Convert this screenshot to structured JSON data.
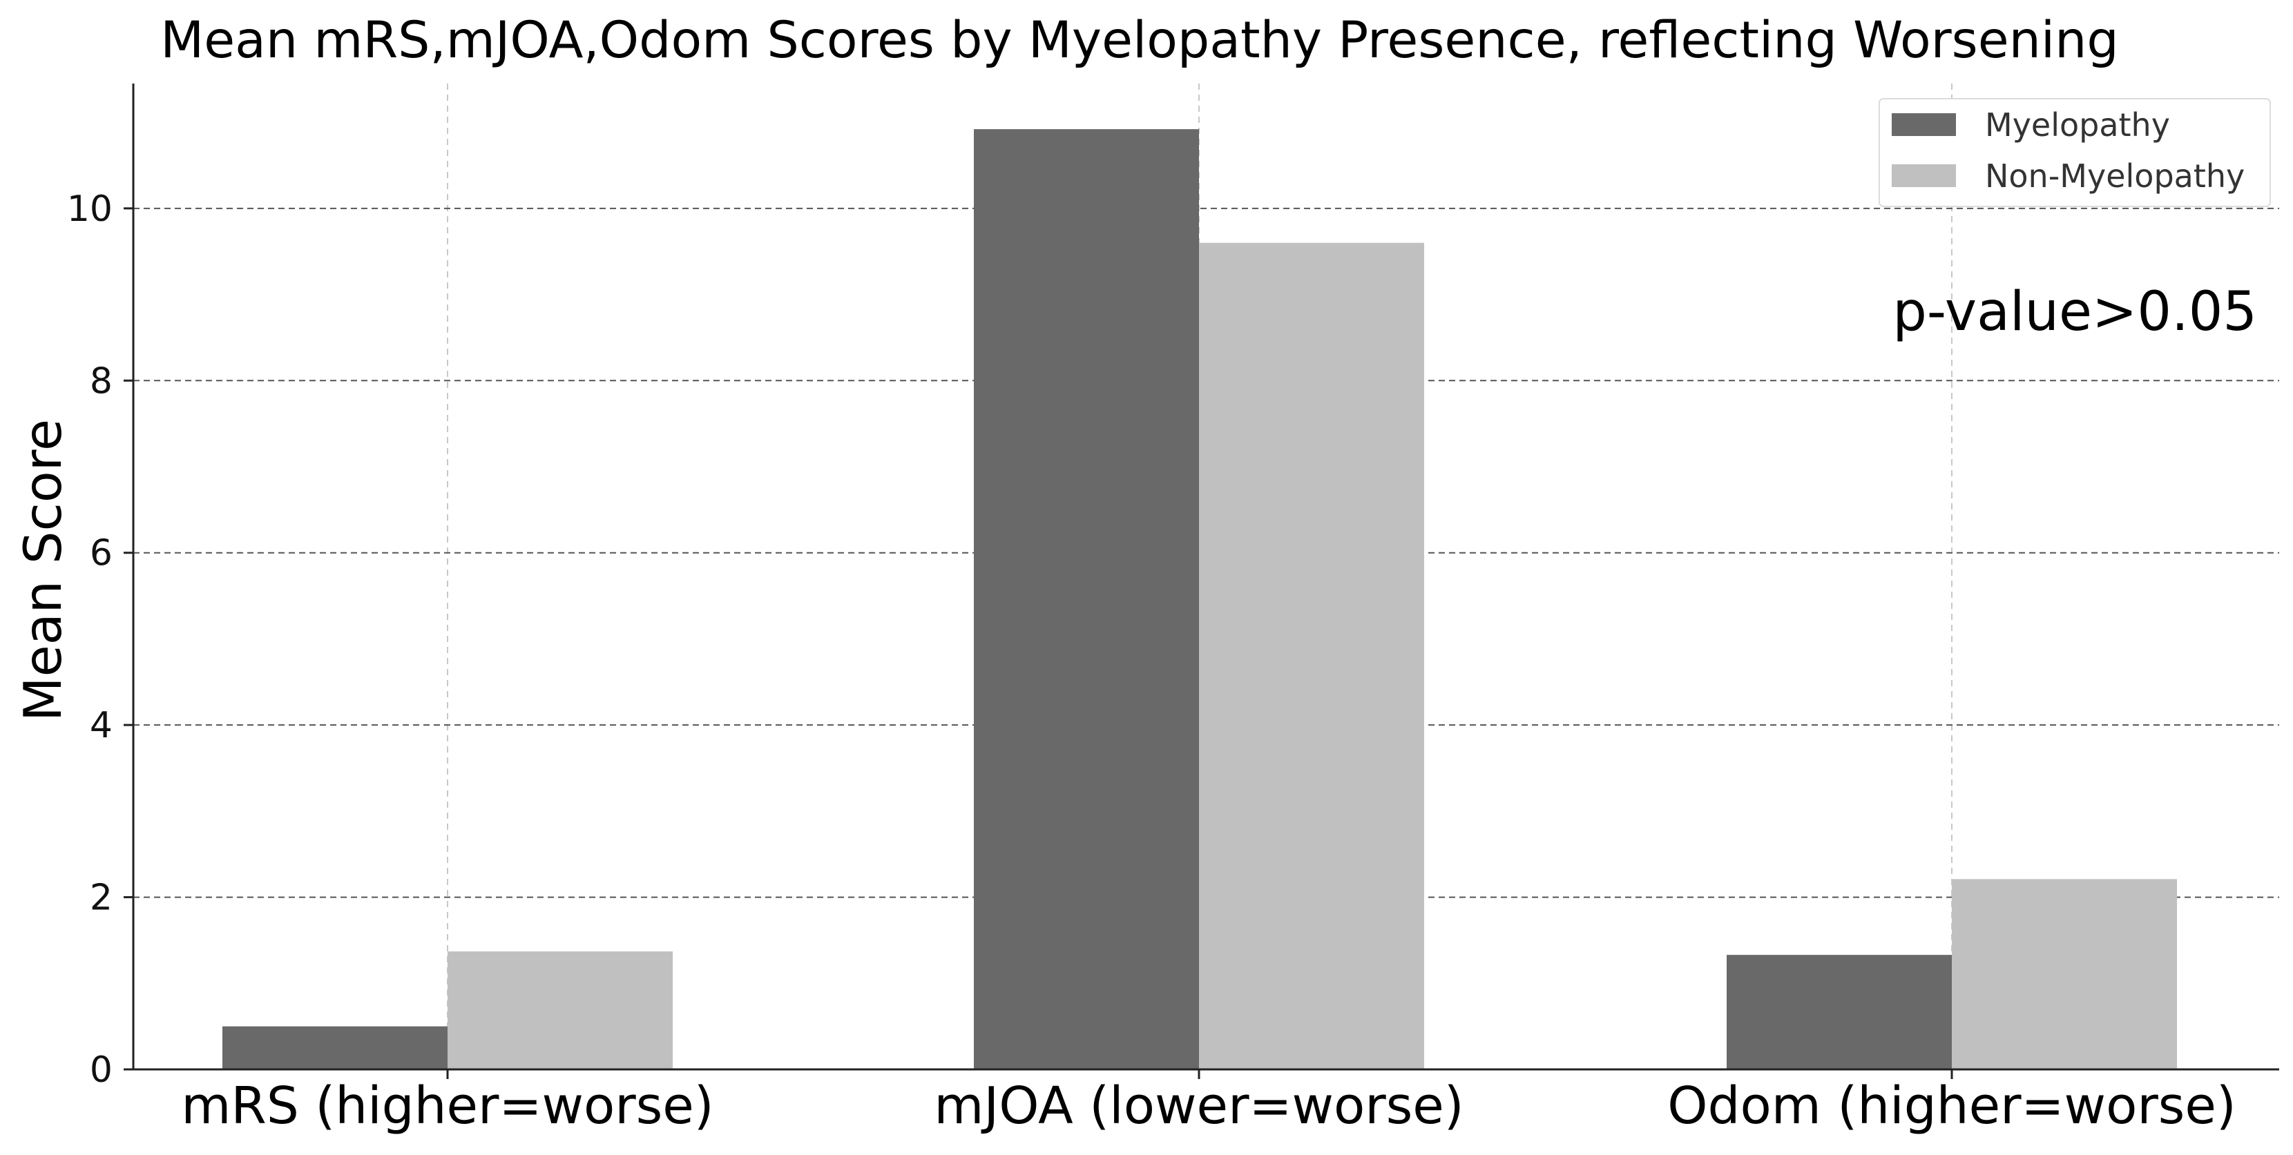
{
  "chart_data": {
    "type": "bar",
    "title": "Mean mRS,mJOA,Odom Scores by Myelopathy Presence, reflecting Worsening",
    "xlabel": "",
    "ylabel": "Mean Score",
    "categories": [
      "mRS (higher=worse)",
      "mJOA (lower=worse)",
      "Odom (higher=worse)"
    ],
    "series": [
      {
        "name": "Myelopathy",
        "values": [
          0.5,
          10.92,
          1.33
        ],
        "color": "#696969"
      },
      {
        "name": "Non-Myelopathy",
        "values": [
          1.37,
          9.6,
          2.21
        ],
        "color": "#c0c0c0"
      }
    ],
    "ylim": [
      0,
      11.45
    ],
    "yticks": [
      0,
      2,
      4,
      6,
      8,
      10
    ],
    "grid": {
      "horizontal": "dashed",
      "vertical": "dashed-light"
    },
    "legend_position": "top-right",
    "annotation": "p-value>0.05"
  }
}
